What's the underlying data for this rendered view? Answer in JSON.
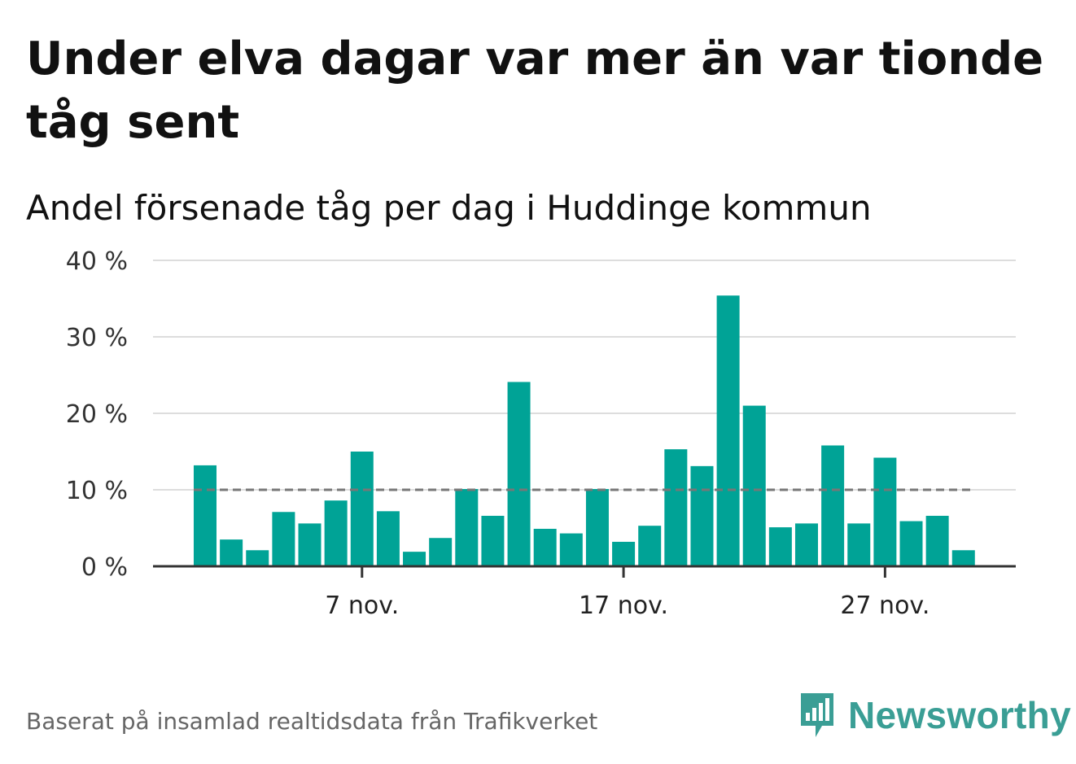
{
  "title": "Under elva dagar var mer än var tionde tåg sent",
  "subtitle": "Andel försenade tåg per dag i Huddinge kommun",
  "source": "Baserat på insamlad realtidsdata från Trafikverket",
  "brand": {
    "name": "Newsworthy",
    "color": "#3a9e95",
    "icon": "newsworthy-logo-icon"
  },
  "colors": {
    "bar": "#00a396",
    "reference_line": "#777777",
    "grid": "#dddddd",
    "axis": "#333333"
  },
  "chart_data": {
    "type": "bar",
    "x": [
      "1 nov.",
      "2 nov.",
      "3 nov.",
      "4 nov.",
      "5 nov.",
      "6 nov.",
      "7 nov.",
      "8 nov.",
      "9 nov.",
      "10 nov.",
      "11 nov.",
      "12 nov.",
      "13 nov.",
      "14 nov.",
      "15 nov.",
      "16 nov.",
      "17 nov.",
      "18 nov.",
      "19 nov.",
      "20 nov.",
      "21 nov.",
      "22 nov.",
      "23 nov.",
      "24 nov.",
      "25 nov.",
      "26 nov.",
      "27 nov.",
      "28 nov.",
      "29 nov.",
      "30 nov."
    ],
    "values": [
      13.2,
      3.5,
      2.1,
      7.1,
      5.6,
      8.6,
      15.0,
      7.2,
      1.9,
      3.7,
      10.1,
      6.6,
      24.1,
      4.9,
      4.3,
      10.1,
      3.2,
      5.3,
      15.3,
      13.1,
      35.4,
      21.0,
      5.1,
      5.6,
      15.8,
      5.6,
      14.2,
      5.9,
      6.6,
      2.1
    ],
    "reference_line": 10,
    "ylim": [
      0,
      40
    ],
    "yticks": [
      0,
      10,
      20,
      30,
      40
    ],
    "ytick_labels": [
      "0 %",
      "10 %",
      "20 %",
      "30 %",
      "40 %"
    ],
    "xtick_labels": [
      {
        "x": "7 nov.",
        "label": "7 nov."
      },
      {
        "x": "17 nov.",
        "label": "17 nov."
      },
      {
        "x": "27 nov.",
        "label": "27 nov."
      }
    ],
    "grid": true
  }
}
